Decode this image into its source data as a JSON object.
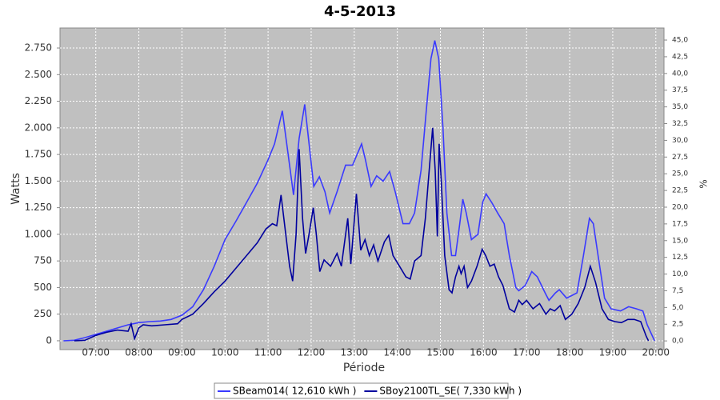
{
  "chart_data": {
    "type": "line",
    "title": "4-5-2013",
    "x_label": "Période",
    "y_label": "Watts",
    "y2_label": "%",
    "xlim": [
      6.17,
      20.19
    ],
    "xticks": [
      {
        "value": 7,
        "label": "07:00"
      },
      {
        "value": 8,
        "label": "08:00"
      },
      {
        "value": 9,
        "label": "09:00"
      },
      {
        "value": 10,
        "label": "10:00"
      },
      {
        "value": 11,
        "label": "11:00"
      },
      {
        "value": 12,
        "label": "12:00"
      },
      {
        "value": 13,
        "label": "13:00"
      },
      {
        "value": 14,
        "label": "14:00"
      },
      {
        "value": 15,
        "label": "15:00"
      },
      {
        "value": 16,
        "label": "16:00"
      },
      {
        "value": 17,
        "label": "17:00"
      },
      {
        "value": 18,
        "label": "18:00"
      },
      {
        "value": 19,
        "label": "19:00"
      },
      {
        "value": 20,
        "label": "20:00"
      }
    ],
    "ylim": [
      -83,
      2938
    ],
    "yticks": [
      0,
      250,
      500,
      750,
      {
        "value": 1000,
        "label": "1.000"
      },
      {
        "value": 1250,
        "label": "1.250"
      },
      {
        "value": 1500,
        "label": "1.500"
      },
      {
        "value": 1750,
        "label": "1.750"
      },
      {
        "value": 2000,
        "label": "2.000"
      },
      {
        "value": 2250,
        "label": "2.250"
      },
      {
        "value": 2500,
        "label": "2.500"
      },
      {
        "value": 2750,
        "label": "2.750"
      }
    ],
    "y2lim": [
      -1.3,
      46.8
    ],
    "y2ticks": [
      {
        "value": 0,
        "label": "0,0"
      },
      {
        "value": 2.5,
        "label": "2,5"
      },
      {
        "value": 5,
        "label": "5,0"
      },
      {
        "value": 7.5,
        "label": "7,5"
      },
      {
        "value": 10,
        "label": "10,0"
      },
      {
        "value": 12.5,
        "label": "12,5"
      },
      {
        "value": 15,
        "label": "15,0"
      },
      {
        "value": 17.5,
        "label": "17,5"
      },
      {
        "value": 20,
        "label": "20,0"
      },
      {
        "value": 22.5,
        "label": "22,5"
      },
      {
        "value": 25,
        "label": "25,0"
      },
      {
        "value": 27.5,
        "label": "27,5"
      },
      {
        "value": 30,
        "label": "30,0"
      },
      {
        "value": 32.5,
        "label": "32,5"
      },
      {
        "value": 35,
        "label": "35,0"
      },
      {
        "value": 37.5,
        "label": "37,5"
      },
      {
        "value": 40,
        "label": "40,0"
      },
      {
        "value": 42.5,
        "label": "42,5"
      },
      {
        "value": 45,
        "label": "45,0"
      }
    ],
    "grid": true,
    "series": [
      {
        "name": "SBeam014( 12,610 kWh )",
        "color": "#3a3aff",
        "x": [
          6.25,
          6.5,
          6.75,
          7.0,
          7.25,
          7.5,
          7.75,
          8.0,
          8.25,
          8.5,
          8.75,
          9.0,
          9.25,
          9.5,
          9.75,
          10.0,
          10.25,
          10.5,
          10.75,
          11.0,
          11.15,
          11.33,
          11.45,
          11.59,
          11.72,
          11.85,
          12.06,
          12.19,
          12.32,
          12.43,
          12.6,
          12.8,
          12.96,
          13.17,
          13.26,
          13.39,
          13.52,
          13.67,
          13.82,
          13.95,
          14.13,
          14.28,
          14.4,
          14.55,
          14.68,
          14.78,
          14.87,
          14.96,
          15.06,
          15.15,
          15.26,
          15.35,
          15.45,
          15.52,
          15.6,
          15.72,
          15.87,
          15.98,
          16.06,
          16.19,
          16.33,
          16.48,
          16.6,
          16.75,
          16.82,
          16.97,
          17.12,
          17.25,
          17.43,
          17.52,
          17.67,
          17.76,
          17.93,
          18.17,
          18.32,
          18.46,
          18.55,
          18.66,
          18.81,
          18.96,
          19.18,
          19.37,
          19.55,
          19.7,
          19.8,
          19.97
        ],
        "values": [
          0,
          5,
          30,
          60,
          90,
          120,
          150,
          170,
          180,
          185,
          200,
          240,
          320,
          480,
          700,
          950,
          1120,
          1300,
          1480,
          1700,
          1850,
          2160,
          1800,
          1370,
          1900,
          2220,
          1450,
          1540,
          1400,
          1200,
          1400,
          1650,
          1650,
          1850,
          1700,
          1450,
          1550,
          1500,
          1590,
          1400,
          1100,
          1100,
          1200,
          1600,
          2200,
          2650,
          2820,
          2650,
          2000,
          1200,
          800,
          800,
          1100,
          1330,
          1200,
          950,
          1000,
          1300,
          1380,
          1300,
          1200,
          1100,
          800,
          500,
          470,
          520,
          650,
          600,
          450,
          380,
          450,
          480,
          400,
          450,
          800,
          1150,
          1100,
          800,
          400,
          300,
          280,
          320,
          300,
          280,
          150,
          0
        ]
      },
      {
        "name": "SBoy2100TL_SE( 7,330 kWh )",
        "color": "#00009e",
        "x": [
          6.5,
          6.75,
          7.0,
          7.25,
          7.5,
          7.75,
          7.82,
          7.9,
          8.0,
          8.1,
          8.3,
          8.6,
          8.9,
          9.0,
          9.25,
          9.5,
          9.75,
          10.0,
          10.25,
          10.5,
          10.75,
          10.95,
          11.1,
          11.2,
          11.3,
          11.38,
          11.5,
          11.57,
          11.65,
          11.72,
          11.8,
          11.87,
          11.95,
          12.05,
          12.12,
          12.2,
          12.3,
          12.45,
          12.6,
          12.7,
          12.85,
          12.92,
          13.05,
          13.15,
          13.25,
          13.35,
          13.45,
          13.55,
          13.7,
          13.8,
          13.9,
          14.05,
          14.2,
          14.3,
          14.4,
          14.55,
          14.65,
          14.72,
          14.82,
          14.88,
          14.93,
          14.97,
          15.02,
          15.1,
          15.2,
          15.27,
          15.35,
          15.43,
          15.48,
          15.55,
          15.63,
          15.72,
          15.85,
          15.97,
          16.05,
          16.15,
          16.25,
          16.35,
          16.45,
          16.6,
          16.72,
          16.82,
          16.9,
          17.0,
          17.15,
          17.3,
          17.45,
          17.55,
          17.65,
          17.78,
          17.9,
          18.05,
          18.2,
          18.35,
          18.48,
          18.6,
          18.75,
          18.9,
          19.05,
          19.2,
          19.35,
          19.5,
          19.65,
          19.78,
          19.83
        ],
        "values": [
          0,
          5,
          50,
          80,
          100,
          90,
          160,
          20,
          120,
          150,
          140,
          150,
          160,
          200,
          250,
          350,
          460,
          560,
          680,
          800,
          920,
          1050,
          1100,
          1080,
          1370,
          1100,
          700,
          560,
          1000,
          1800,
          1150,
          820,
          1000,
          1250,
          1000,
          650,
          760,
          700,
          820,
          700,
          1150,
          720,
          1380,
          850,
          950,
          800,
          900,
          750,
          930,
          990,
          800,
          700,
          600,
          580,
          750,
          800,
          1150,
          1500,
          2000,
          1600,
          980,
          1850,
          1500,
          800,
          480,
          450,
          600,
          700,
          630,
          700,
          500,
          560,
          700,
          860,
          800,
          700,
          720,
          600,
          520,
          300,
          270,
          380,
          340,
          380,
          300,
          350,
          250,
          300,
          280,
          330,
          200,
          250,
          350,
          500,
          700,
          550,
          300,
          200,
          180,
          170,
          200,
          200,
          180,
          40,
          0
        ]
      }
    ]
  }
}
